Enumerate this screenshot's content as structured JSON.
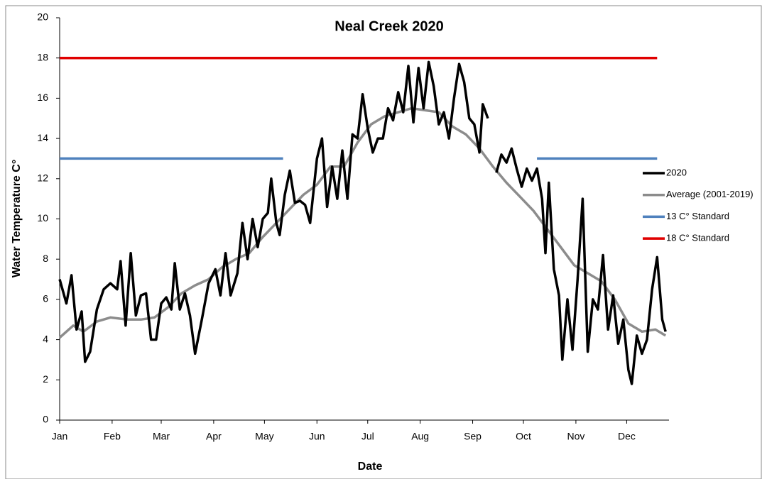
{
  "chart_data": {
    "type": "line",
    "title": "Neal Creek 2020",
    "x_label": "Date",
    "y_label": "Water Temperature C°",
    "xlim": [
      0,
      360
    ],
    "xticks": [
      {
        "value": 0,
        "label": "Jan"
      },
      {
        "value": 31,
        "label": "Feb"
      },
      {
        "value": 60,
        "label": "Mar"
      },
      {
        "value": 91,
        "label": "Apr"
      },
      {
        "value": 121,
        "label": "May"
      },
      {
        "value": 152,
        "label": "Jun"
      },
      {
        "value": 182,
        "label": "Jul"
      },
      {
        "value": 213,
        "label": "Aug"
      },
      {
        "value": 244,
        "label": "Sep"
      },
      {
        "value": 274,
        "label": "Oct"
      },
      {
        "value": 305,
        "label": "Nov"
      },
      {
        "value": 335,
        "label": "Dec"
      }
    ],
    "ylim": [
      0,
      20
    ],
    "yticks": [
      0,
      2,
      4,
      6,
      8,
      10,
      12,
      14,
      16,
      18,
      20
    ],
    "legend": "right",
    "series": [
      {
        "name": "2020",
        "color": "#000000",
        "x": [
          0,
          4,
          7,
          10,
          13,
          15,
          18,
          22,
          26,
          30,
          34,
          36,
          39,
          42,
          45,
          48,
          51,
          54,
          57,
          60,
          63,
          66,
          68,
          71,
          74,
          77,
          80,
          84,
          88,
          92,
          95,
          98,
          101,
          105,
          108,
          111,
          114,
          117,
          120,
          123,
          125,
          128,
          130,
          133,
          136,
          139,
          142,
          145,
          148,
          152,
          155,
          158,
          161,
          164,
          167,
          170,
          173,
          176,
          179,
          182,
          185,
          188,
          191,
          194,
          197,
          200,
          203,
          206,
          209,
          212,
          215,
          218,
          221,
          224,
          227,
          230,
          233,
          236,
          239,
          242,
          245,
          248,
          250,
          253,
          256,
          258,
          261,
          264,
          267,
          270,
          273,
          276,
          279,
          282,
          285,
          287,
          289,
          292,
          295,
          297,
          300,
          303,
          306,
          309,
          312,
          315,
          318,
          321,
          324,
          327,
          330,
          333,
          336,
          338,
          341,
          344,
          347,
          350,
          353,
          356,
          358
        ],
        "values": [
          7.0,
          5.8,
          7.2,
          4.5,
          5.4,
          2.9,
          3.4,
          5.5,
          6.5,
          6.8,
          6.5,
          7.9,
          4.7,
          8.3,
          5.2,
          6.2,
          6.3,
          4.0,
          4.0,
          5.8,
          6.1,
          5.5,
          7.8,
          5.5,
          6.3,
          5.2,
          3.3,
          5.0,
          6.8,
          7.5,
          6.2,
          8.3,
          6.2,
          7.3,
          9.8,
          8.0,
          10.0,
          8.6,
          10.0,
          10.3,
          12.0,
          9.8,
          9.2,
          11.2,
          12.4,
          10.8,
          10.9,
          10.7,
          9.8,
          13.0,
          14.0,
          10.6,
          12.6,
          11.0,
          13.4,
          11.0,
          14.2,
          14.0,
          16.2,
          14.5,
          13.3,
          14.0,
          14.0,
          15.5,
          14.9,
          16.3,
          15.3,
          17.6,
          14.8,
          17.5,
          15.5,
          17.8,
          16.6,
          14.7,
          15.3,
          14.0,
          16.0,
          17.7,
          16.8,
          15.0,
          14.7,
          13.3,
          15.7,
          15.0,
          null,
          12.3,
          13.2,
          12.8,
          13.5,
          12.5,
          11.6,
          12.5,
          11.9,
          12.5,
          11.0,
          8.3,
          11.8,
          7.5,
          6.2,
          3.0,
          6.0,
          3.5,
          7.0,
          11.0,
          3.4,
          6.0,
          5.5,
          8.2,
          4.5,
          6.2,
          3.8,
          5.0,
          2.5,
          1.8,
          4.2,
          3.3,
          4.0,
          6.5,
          8.1,
          5.0,
          4.4
        ]
      },
      {
        "name": "Average (2001-2019)",
        "color": "#8c8c8c",
        "x": [
          0,
          8,
          14,
          22,
          30,
          40,
          48,
          56,
          64,
          72,
          80,
          88,
          96,
          104,
          112,
          120,
          128,
          136,
          144,
          152,
          160,
          168,
          176,
          184,
          192,
          200,
          208,
          216,
          224,
          232,
          240,
          248,
          256,
          264,
          272,
          280,
          288,
          296,
          304,
          312,
          320,
          328,
          336,
          344,
          352,
          358
        ],
        "values": [
          4.1,
          4.7,
          4.4,
          4.9,
          5.1,
          5.0,
          5.0,
          5.1,
          5.6,
          6.3,
          6.7,
          7.0,
          7.6,
          8.0,
          8.3,
          9.1,
          9.8,
          10.5,
          11.2,
          11.7,
          12.6,
          12.6,
          13.8,
          14.7,
          15.1,
          15.3,
          15.5,
          15.4,
          15.3,
          14.6,
          14.2,
          13.5,
          12.6,
          11.8,
          11.1,
          10.4,
          9.5,
          8.6,
          7.7,
          7.3,
          6.9,
          6.0,
          4.8,
          4.4,
          4.5,
          4.2
        ]
      },
      {
        "name": "13 C° Standard",
        "color": "#4f81bd",
        "x": [
          0,
          132,
          200,
          282,
          353
        ],
        "values": [
          13,
          13,
          null,
          13,
          13
        ]
      },
      {
        "name": "18 C° Standard",
        "color": "#e00000",
        "x": [
          0,
          353
        ],
        "values": [
          18,
          18
        ]
      }
    ]
  }
}
